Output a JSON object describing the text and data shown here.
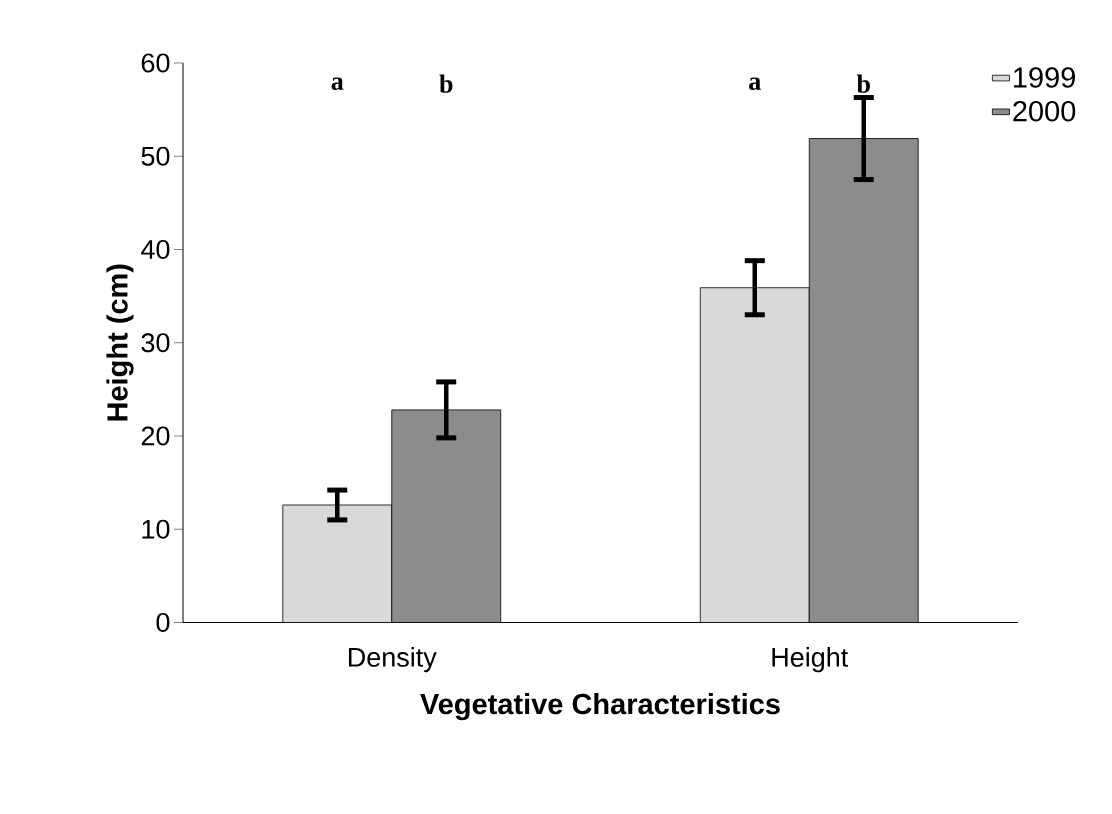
{
  "chart_data": {
    "type": "bar",
    "ylabel": "Height (cm)",
    "xlabel": "Vegetative Characteristics",
    "categories": [
      "Density",
      "Height"
    ],
    "series": [
      {
        "name": "1999",
        "color": "#d9d9d9",
        "values": [
          12.6,
          35.9
        ],
        "errors": [
          1.6,
          2.9
        ]
      },
      {
        "name": "2000",
        "color": "#8c8c8c",
        "values": [
          22.8,
          51.9
        ],
        "errors": [
          3.0,
          4.4
        ]
      }
    ],
    "ylim": [
      0,
      60
    ],
    "yticks": [
      0,
      10,
      20,
      30,
      40,
      50,
      60
    ],
    "legend": "top right",
    "grid": false,
    "annotations": [
      "a",
      "b",
      "a",
      "b"
    ]
  }
}
